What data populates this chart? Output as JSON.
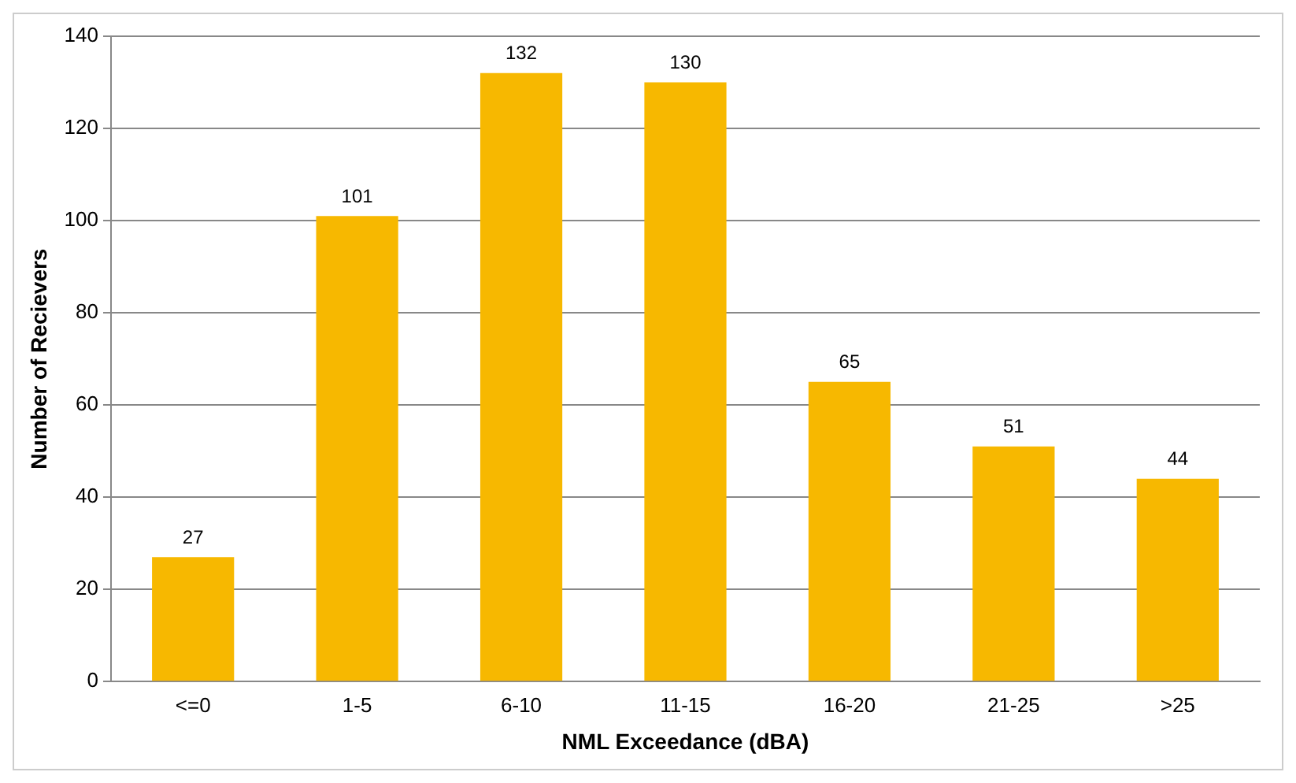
{
  "chart_data": {
    "type": "bar",
    "xlabel": "NML Exceedance (dBA)",
    "ylabel": "Number of Recievers",
    "categories": [
      "<=0",
      "1-5",
      "6-10",
      "11-15",
      "16-20",
      "21-25",
      ">25"
    ],
    "values": [
      27,
      101,
      132,
      130,
      65,
      51,
      44
    ],
    "color": "#f7b800",
    "ylim": [
      0,
      140
    ],
    "yticks": [
      0,
      20,
      40,
      60,
      80,
      100,
      120,
      140
    ],
    "grid": "y",
    "data_labels": true,
    "legend": false
  }
}
